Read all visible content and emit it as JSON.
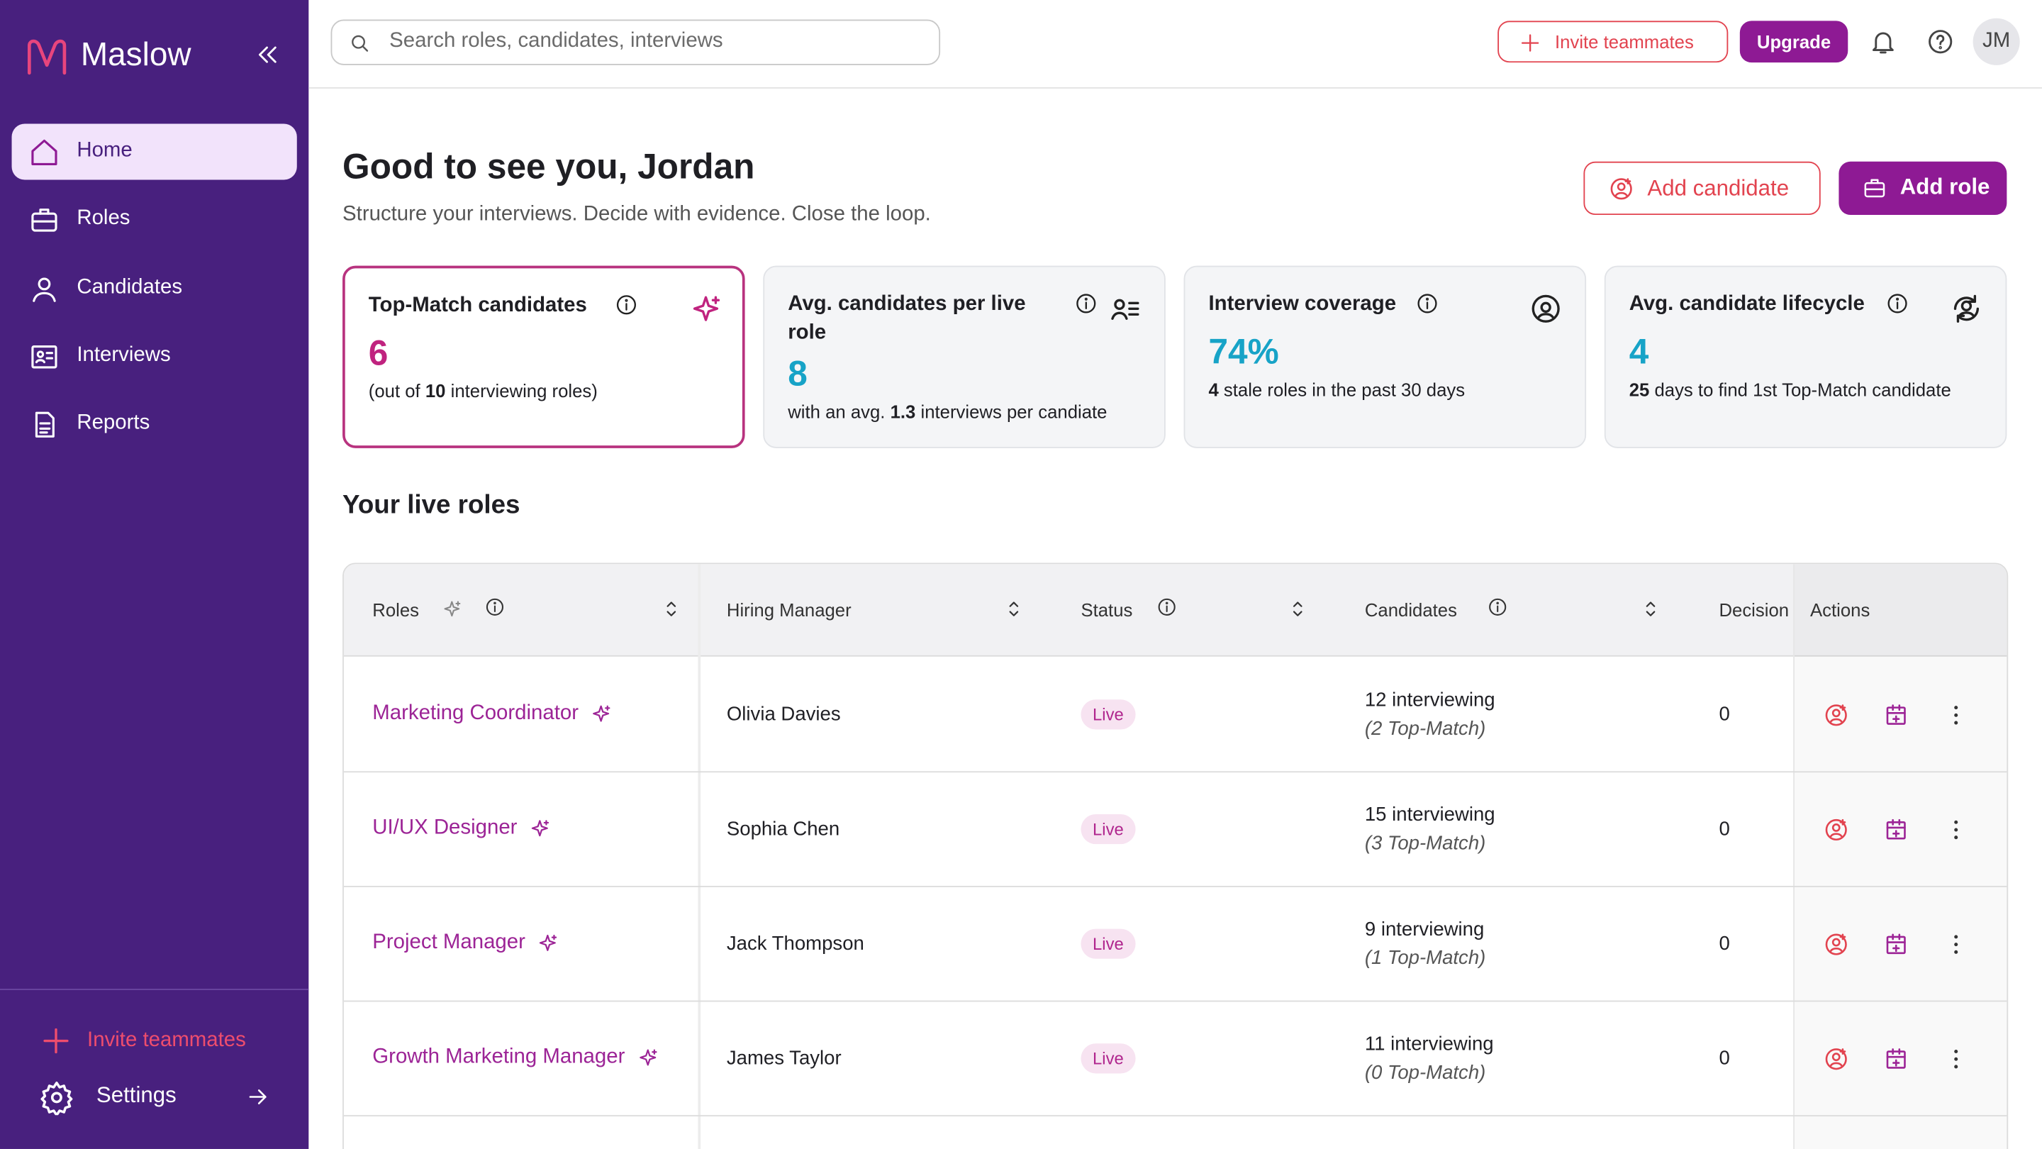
{
  "sidebar": {
    "brand": "Maslow",
    "nav": [
      "Home",
      "Roles",
      "Candidates",
      "Interviews",
      "Reports"
    ],
    "active": 0,
    "invite": "Invite teammates",
    "settings": "Settings"
  },
  "header": {
    "search_placeholder": "Search roles, candidates, interviews",
    "invite": "Invite teammates",
    "upgrade": "Upgrade",
    "avatar": "JM"
  },
  "greeting": {
    "title": "Good to see you, Jordan",
    "subtitle": "Structure your interviews. Decide with evidence. Close the loop.",
    "add_candidate": "Add candidate",
    "add_role": "Add role"
  },
  "cards": [
    {
      "title": "Top-Match candidates",
      "value": "6",
      "before": "(out of ",
      "strong": "10",
      "after": " interviewing roles)"
    },
    {
      "title": "Avg. candidates per live role",
      "value": "8",
      "before": "with an avg. ",
      "strong": "1.3",
      "after": " interviews per candiate"
    },
    {
      "title": "Interview coverage",
      "value": "74%",
      "strong": "4",
      "after": " stale roles in the past 30 days"
    },
    {
      "title": "Avg. candidate lifecycle",
      "value": "4",
      "strong": "25",
      "after": " days to find 1st Top-Match candidate"
    }
  ],
  "table": {
    "title": "Your live roles",
    "columns": [
      "Roles",
      "Hiring Manager",
      "Status",
      "Candidates",
      "Decision",
      "Actions"
    ],
    "rows": [
      {
        "role": "Marketing Coordinator",
        "manager": "Olivia Davies",
        "status": "Live",
        "candidates": "12 interviewing",
        "top_match": "(2 Top-Match)",
        "decision": "0"
      },
      {
        "role": "UI/UX Designer",
        "manager": "Sophia Chen",
        "status": "Live",
        "candidates": "15 interviewing",
        "top_match": "(3 Top-Match)",
        "decision": "0"
      },
      {
        "role": "Project Manager",
        "manager": "Jack Thompson",
        "status": "Live",
        "candidates": "9 interviewing",
        "top_match": "(1 Top-Match)",
        "decision": "0"
      },
      {
        "role": "Growth Marketing Manager",
        "manager": "James Taylor",
        "status": "Live",
        "candidates": "11 interviewing",
        "top_match": "(0 Top-Match)",
        "decision": "0"
      }
    ]
  }
}
